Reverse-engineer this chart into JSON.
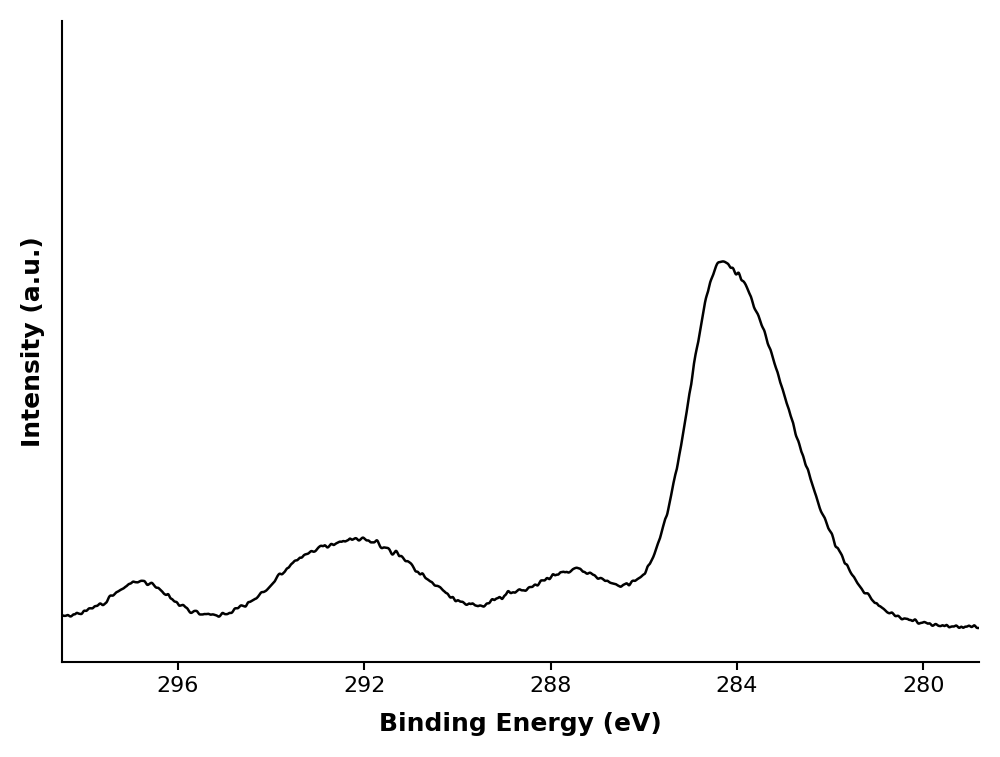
{
  "title": "",
  "xlabel": "Binding Energy (eV)",
  "ylabel": "Intensity (a.u.)",
  "xlabel_fontsize": 18,
  "ylabel_fontsize": 18,
  "xlabel_fontweight": "bold",
  "ylabel_fontweight": "bold",
  "tick_fontsize": 16,
  "x_ticks": [
    296,
    292,
    288,
    284,
    280
  ],
  "xlim": [
    298.5,
    278.8
  ],
  "ylim": [
    0,
    180
  ],
  "background_color": "#ffffff",
  "line_color": "#000000",
  "line_width": 1.8,
  "spine_linewidth": 1.5
}
